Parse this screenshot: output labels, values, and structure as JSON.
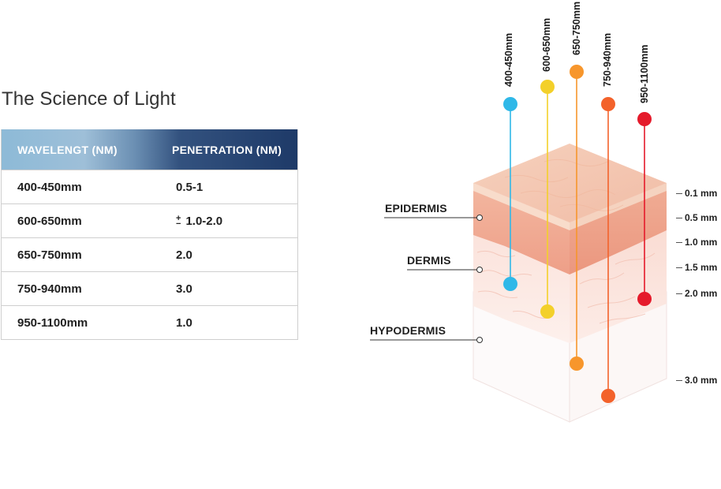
{
  "title": "The Science of Light",
  "table": {
    "headers": [
      "WAVELENGT (NM)",
      "PENETRATION (NM)"
    ],
    "rows": [
      {
        "wavelength": "400-450mm",
        "penetration": "0.5-1",
        "pm": false
      },
      {
        "wavelength": "600-650mm",
        "penetration": "1.0-2.0",
        "pm": true,
        "pm_symbol": "+−"
      },
      {
        "wavelength": "650-750mm",
        "penetration": "2.0",
        "pm": false
      },
      {
        "wavelength": "750-940mm",
        "penetration": "3.0",
        "pm": false
      },
      {
        "wavelength": "950-1100mm",
        "penetration": "1.0",
        "pm": false
      }
    ]
  },
  "wavelength_labels": [
    "400-450mm",
    "600-650mm",
    "650-750mm",
    "750-940mm",
    "950-1100mm"
  ],
  "wavelength_colors": [
    "#2fb8e8",
    "#f3d02a",
    "#f7962c",
    "#f3622b",
    "#e51a2b"
  ],
  "layers": [
    "EPIDERMIS",
    "DERMIS",
    "HYPODERMIS"
  ],
  "depths": [
    "0.1 mm",
    "0.5 mm",
    "1.0 mm",
    "1.5 mm",
    "2.0 mm",
    "3.0 mm"
  ]
}
